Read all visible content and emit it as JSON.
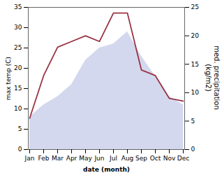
{
  "chart_data": {
    "type": "combo",
    "categories": [
      "Jan",
      "Feb",
      "Mar",
      "Apr",
      "May",
      "Jun",
      "Jul",
      "Aug",
      "Sep",
      "Oct",
      "Nov",
      "Dec"
    ],
    "series": [
      {
        "type": "area",
        "color": "#b0b8e0",
        "values": [
          8,
          11,
          13,
          16,
          22,
          25,
          26,
          29,
          23,
          18,
          13,
          11
        ]
      },
      {
        "type": "line",
        "axis": "y2",
        "color": "#993344",
        "values": [
          5.5,
          13,
          18,
          19,
          20,
          19,
          24,
          24,
          14,
          13,
          9,
          8.5
        ]
      }
    ],
    "xlabel": "date (month)",
    "ylabel": "max temp (C)",
    "y2label": "med. precipitation\n(kg/m2)",
    "ylim": [
      0,
      35
    ],
    "yticks": [
      0,
      5,
      10,
      15,
      20,
      25,
      30,
      35
    ],
    "y2lim": [
      0,
      25
    ],
    "y2ticks": [
      0,
      5,
      10,
      15,
      20,
      25
    ]
  }
}
